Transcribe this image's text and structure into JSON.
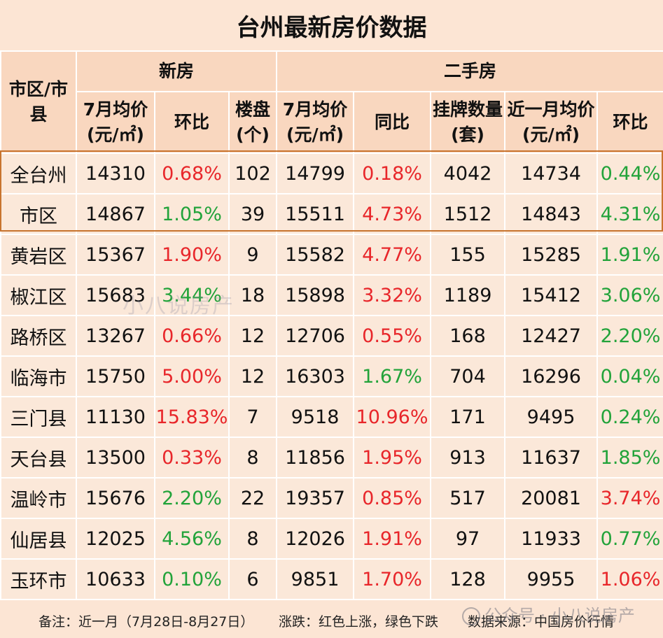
{
  "title": "台州最新房价数据",
  "header": {
    "region": "市区/市县",
    "new_group": "新房",
    "second_group": "二手房",
    "cols": [
      "7月均价(元/㎡)",
      "环比",
      "楼盘(个)",
      "7月均价(元/㎡)",
      "同比",
      "挂牌数量(套)",
      "近一月均价(元/㎡)",
      "环比"
    ]
  },
  "rows": [
    {
      "city": "全台州",
      "np": "14310",
      "nmom": "0.68%",
      "nmom_t": "up",
      "cnt": "102",
      "sp": "14799",
      "yoy": "0.18%",
      "yoy_t": "up",
      "list": "4042",
      "mp": "14734",
      "smom": "0.44%",
      "smom_t": "down"
    },
    {
      "city": "市区",
      "np": "14867",
      "nmom": "1.05%",
      "nmom_t": "down",
      "cnt": "39",
      "sp": "15511",
      "yoy": "4.73%",
      "yoy_t": "up",
      "list": "1512",
      "mp": "14843",
      "smom": "4.31%",
      "smom_t": "down"
    },
    {
      "city": "黄岩区",
      "np": "15367",
      "nmom": "1.90%",
      "nmom_t": "up",
      "cnt": "9",
      "sp": "15582",
      "yoy": "4.77%",
      "yoy_t": "up",
      "list": "155",
      "mp": "15285",
      "smom": "1.91%",
      "smom_t": "down"
    },
    {
      "city": "椒江区",
      "np": "15683",
      "nmom": "3.44%",
      "nmom_t": "down",
      "cnt": "18",
      "sp": "15898",
      "yoy": "3.32%",
      "yoy_t": "up",
      "list": "1189",
      "mp": "15412",
      "smom": "3.06%",
      "smom_t": "down"
    },
    {
      "city": "路桥区",
      "np": "13267",
      "nmom": "0.66%",
      "nmom_t": "up",
      "cnt": "12",
      "sp": "12706",
      "yoy": "0.55%",
      "yoy_t": "up",
      "list": "168",
      "mp": "12427",
      "smom": "2.20%",
      "smom_t": "down"
    },
    {
      "city": "临海市",
      "np": "15750",
      "nmom": "5.00%",
      "nmom_t": "up",
      "cnt": "12",
      "sp": "16303",
      "yoy": "1.67%",
      "yoy_t": "down",
      "list": "704",
      "mp": "16296",
      "smom": "0.04%",
      "smom_t": "down"
    },
    {
      "city": "三门县",
      "np": "11130",
      "nmom": "15.83%",
      "nmom_t": "up",
      "cnt": "7",
      "sp": "9518",
      "yoy": "10.96%",
      "yoy_t": "up",
      "list": "171",
      "mp": "9495",
      "smom": "0.24%",
      "smom_t": "down"
    },
    {
      "city": "天台县",
      "np": "13500",
      "nmom": "0.33%",
      "nmom_t": "up",
      "cnt": "8",
      "sp": "11856",
      "yoy": "1.95%",
      "yoy_t": "up",
      "list": "913",
      "mp": "11637",
      "smom": "1.85%",
      "smom_t": "down"
    },
    {
      "city": "温岭市",
      "np": "15676",
      "nmom": "2.20%",
      "nmom_t": "down",
      "cnt": "22",
      "sp": "19357",
      "yoy": "0.85%",
      "yoy_t": "up",
      "list": "517",
      "mp": "20081",
      "smom": "3.74%",
      "smom_t": "up"
    },
    {
      "city": "仙居县",
      "np": "12025",
      "nmom": "4.56%",
      "nmom_t": "down",
      "cnt": "8",
      "sp": "12026",
      "yoy": "1.91%",
      "yoy_t": "up",
      "list": "97",
      "mp": "11933",
      "smom": "0.77%",
      "smom_t": "down"
    },
    {
      "city": "玉环市",
      "np": "10633",
      "nmom": "0.10%",
      "nmom_t": "down",
      "cnt": "6",
      "sp": "9851",
      "yoy": "1.70%",
      "yoy_t": "up",
      "list": "128",
      "mp": "9955",
      "smom": "1.06%",
      "smom_t": "up"
    }
  ],
  "footer": {
    "note": "备注：近一月（7月28日-8月27日）",
    "legend": "涨跌：红色上涨，绿色下跌",
    "source": "数据来源：中国房价行情"
  },
  "watermark": "小八说房产",
  "account_watermark": "公众号 · 小八说房产",
  "colors": {
    "up": "#e8262a",
    "down": "#22a33a",
    "header_bg": "#f9d7bf",
    "cell_bg": "#fbe8d9",
    "highlight_border": "#c8742e"
  }
}
